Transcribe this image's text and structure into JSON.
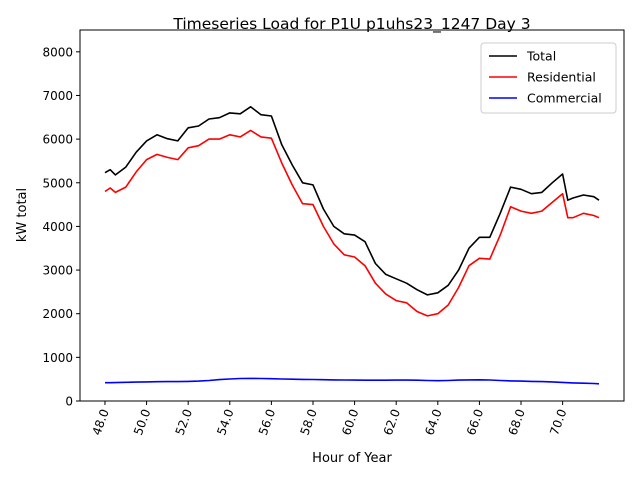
{
  "chart_data": {
    "type": "line",
    "title": "Timeseries Load for P1U p1uhs23_1247  Day 3",
    "xlabel": "Hour of Year",
    "ylabel": "kW total",
    "xlim": [
      46.8,
      72.95
    ],
    "ylim": [
      0,
      8500
    ],
    "xticks": [
      48,
      50,
      52,
      54,
      56,
      58,
      60,
      62,
      64,
      66,
      68,
      70
    ],
    "xtick_labels": [
      "48.0",
      "50.0",
      "52.0",
      "54.0",
      "56.0",
      "58.0",
      "60.0",
      "62.0",
      "64.0",
      "66.0",
      "68.0",
      "70.0"
    ],
    "yticks": [
      0,
      1000,
      2000,
      3000,
      4000,
      5000,
      6000,
      7000,
      8000
    ],
    "ytick_labels": [
      "0",
      "1000",
      "2000",
      "3000",
      "4000",
      "5000",
      "6000",
      "7000",
      "8000"
    ],
    "grid": false,
    "legend_position": "top-right",
    "x": [
      48,
      48.25,
      48.5,
      49,
      49.5,
      50,
      50.5,
      51,
      51.5,
      52,
      52.5,
      53,
      53.5,
      54,
      54.5,
      55,
      55.5,
      56,
      56.5,
      57,
      57.5,
      58,
      58.5,
      59,
      59.5,
      60,
      60.5,
      61,
      61.5,
      62,
      62.5,
      63,
      63.5,
      64,
      64.5,
      65,
      65.5,
      66,
      66.5,
      67,
      67.5,
      68,
      68.5,
      69,
      69.5,
      70,
      70.25,
      70.5,
      71,
      71.5,
      71.75
    ],
    "series": [
      {
        "name": "Total",
        "color": "#000000",
        "values": [
          5230,
          5300,
          5180,
          5360,
          5700,
          5960,
          6100,
          6010,
          5960,
          6260,
          6300,
          6460,
          6490,
          6600,
          6580,
          6740,
          6560,
          6530,
          5870,
          5410,
          5000,
          4950,
          4400,
          4000,
          3830,
          3800,
          3650,
          3150,
          2900,
          2800,
          2700,
          2550,
          2430,
          2480,
          2650,
          3000,
          3500,
          3750,
          3750,
          4300,
          4900,
          4850,
          4750,
          4780,
          5000,
          5200,
          4600,
          4650,
          4720,
          4680,
          4600
        ]
      },
      {
        "name": "Residential",
        "color": "#ff0000",
        "values": [
          4800,
          4880,
          4780,
          4900,
          5250,
          5530,
          5650,
          5580,
          5530,
          5800,
          5850,
          6000,
          6000,
          6100,
          6050,
          6200,
          6050,
          6020,
          5450,
          4950,
          4520,
          4500,
          4000,
          3600,
          3350,
          3300,
          3100,
          2700,
          2450,
          2300,
          2250,
          2050,
          1950,
          2000,
          2200,
          2600,
          3100,
          3270,
          3250,
          3800,
          4450,
          4350,
          4300,
          4350,
          4550,
          4750,
          4200,
          4200,
          4300,
          4250,
          4200
        ]
      },
      {
        "name": "Commercial",
        "color": "#0000ff",
        "values": [
          420,
          420,
          422,
          428,
          432,
          438,
          442,
          445,
          445,
          448,
          455,
          470,
          490,
          505,
          515,
          518,
          515,
          510,
          505,
          500,
          495,
          492,
          488,
          484,
          480,
          478,
          476,
          476,
          477,
          478,
          478,
          476,
          470,
          465,
          470,
          478,
          484,
          486,
          482,
          470,
          460,
          455,
          450,
          445,
          438,
          425,
          420,
          415,
          408,
          400,
          395
        ]
      }
    ]
  }
}
